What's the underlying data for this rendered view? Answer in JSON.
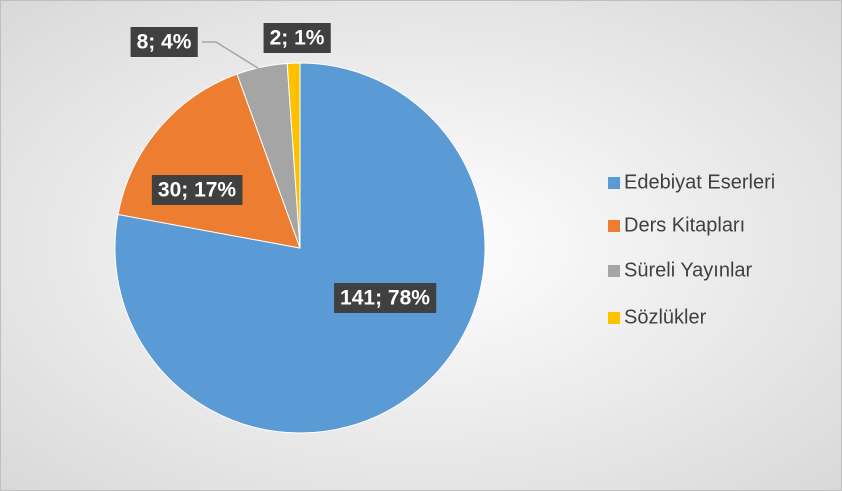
{
  "chart_data": {
    "type": "pie",
    "categories": [
      "Edebiyat Eserleri",
      "Ders Kitapları",
      "Süreli Yayınlar",
      "Sözlükler"
    ],
    "values": [
      141,
      30,
      8,
      2
    ],
    "value_labels": [
      "141; 78%",
      "30; 17%",
      "8; 4%",
      "2; 1%"
    ],
    "colors": [
      "#5b9bd5",
      "#ed7d31",
      "#a5a5a5",
      "#ffc000"
    ],
    "legend": "right"
  }
}
